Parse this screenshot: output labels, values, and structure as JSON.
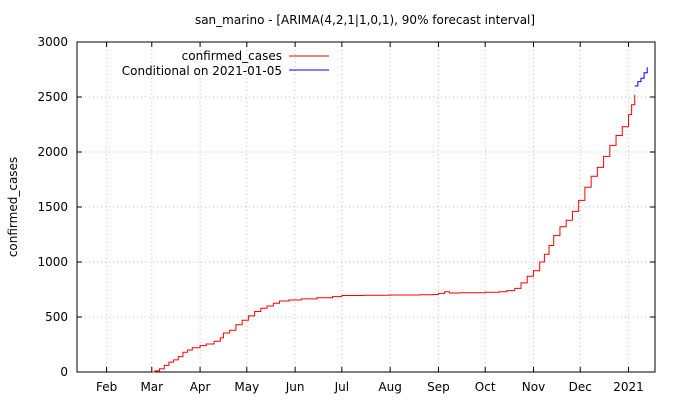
{
  "chart_data": {
    "type": "line",
    "title": "san_marino -  [ARIMA(4,2,1|1,0,1), 90% forecast interval]",
    "xlabel": "",
    "ylabel": "confirmed_cases",
    "ylim": [
      0,
      3000
    ],
    "xlim": [
      "2020-01-13",
      "2021-01-18"
    ],
    "grid": true,
    "legend_position": "top-left",
    "x_ticks": [
      {
        "label": "Feb",
        "date": "2020-02-01"
      },
      {
        "label": "Mar",
        "date": "2020-03-01"
      },
      {
        "label": "Apr",
        "date": "2020-04-01"
      },
      {
        "label": "May",
        "date": "2020-05-01"
      },
      {
        "label": "Jun",
        "date": "2020-06-01"
      },
      {
        "label": "Jul",
        "date": "2020-07-01"
      },
      {
        "label": "Aug",
        "date": "2020-08-01"
      },
      {
        "label": "Sep",
        "date": "2020-09-01"
      },
      {
        "label": "Oct",
        "date": "2020-10-01"
      },
      {
        "label": "Nov",
        "date": "2020-11-01"
      },
      {
        "label": "Dec",
        "date": "2020-12-01"
      },
      {
        "label": "2021",
        "date": "2021-01-01"
      }
    ],
    "y_ticks": [
      0,
      500,
      1000,
      1500,
      2000,
      2500,
      3000
    ],
    "series": [
      {
        "name": "confirmed_cases",
        "color": "#ff0000",
        "points": [
          [
            "2020-03-01",
            0
          ],
          [
            "2020-03-03",
            10
          ],
          [
            "2020-03-06",
            30
          ],
          [
            "2020-03-09",
            60
          ],
          [
            "2020-03-12",
            90
          ],
          [
            "2020-03-15",
            110
          ],
          [
            "2020-03-18",
            140
          ],
          [
            "2020-03-21",
            180
          ],
          [
            "2020-03-24",
            200
          ],
          [
            "2020-03-27",
            220
          ],
          [
            "2020-04-01",
            240
          ],
          [
            "2020-04-05",
            255
          ],
          [
            "2020-04-10",
            280
          ],
          [
            "2020-04-14",
            310
          ],
          [
            "2020-04-16",
            355
          ],
          [
            "2020-04-20",
            380
          ],
          [
            "2020-04-24",
            430
          ],
          [
            "2020-04-28",
            470
          ],
          [
            "2020-05-02",
            510
          ],
          [
            "2020-05-06",
            550
          ],
          [
            "2020-05-10",
            580
          ],
          [
            "2020-05-14",
            600
          ],
          [
            "2020-05-18",
            625
          ],
          [
            "2020-05-22",
            645
          ],
          [
            "2020-05-28",
            655
          ],
          [
            "2020-06-05",
            665
          ],
          [
            "2020-06-15",
            675
          ],
          [
            "2020-06-25",
            685
          ],
          [
            "2020-07-01",
            695
          ],
          [
            "2020-07-15",
            698
          ],
          [
            "2020-08-01",
            700
          ],
          [
            "2020-08-20",
            702
          ],
          [
            "2020-08-28",
            705
          ],
          [
            "2020-09-01",
            715
          ],
          [
            "2020-09-05",
            730
          ],
          [
            "2020-09-08",
            718
          ],
          [
            "2020-09-15",
            720
          ],
          [
            "2020-10-01",
            725
          ],
          [
            "2020-10-10",
            730
          ],
          [
            "2020-10-15",
            740
          ],
          [
            "2020-10-20",
            760
          ],
          [
            "2020-10-24",
            810
          ],
          [
            "2020-10-28",
            870
          ],
          [
            "2020-11-01",
            920
          ],
          [
            "2020-11-05",
            1000
          ],
          [
            "2020-11-08",
            1070
          ],
          [
            "2020-11-11",
            1150
          ],
          [
            "2020-11-14",
            1240
          ],
          [
            "2020-11-18",
            1320
          ],
          [
            "2020-11-22",
            1380
          ],
          [
            "2020-11-26",
            1460
          ],
          [
            "2020-11-30",
            1560
          ],
          [
            "2020-12-04",
            1680
          ],
          [
            "2020-12-08",
            1780
          ],
          [
            "2020-12-12",
            1860
          ],
          [
            "2020-12-16",
            1960
          ],
          [
            "2020-12-20",
            2060
          ],
          [
            "2020-12-24",
            2150
          ],
          [
            "2020-12-28",
            2230
          ],
          [
            "2021-01-01",
            2340
          ],
          [
            "2021-01-03",
            2430
          ],
          [
            "2021-01-05",
            2520
          ]
        ]
      },
      {
        "name": "Conditional on 2021-01-05",
        "color": "#0000ff",
        "points": [
          [
            "2021-01-05",
            2600
          ],
          [
            "2021-01-07",
            2640
          ],
          [
            "2021-01-09",
            2670
          ],
          [
            "2021-01-11",
            2720
          ],
          [
            "2021-01-13",
            2770
          ]
        ]
      }
    ]
  }
}
